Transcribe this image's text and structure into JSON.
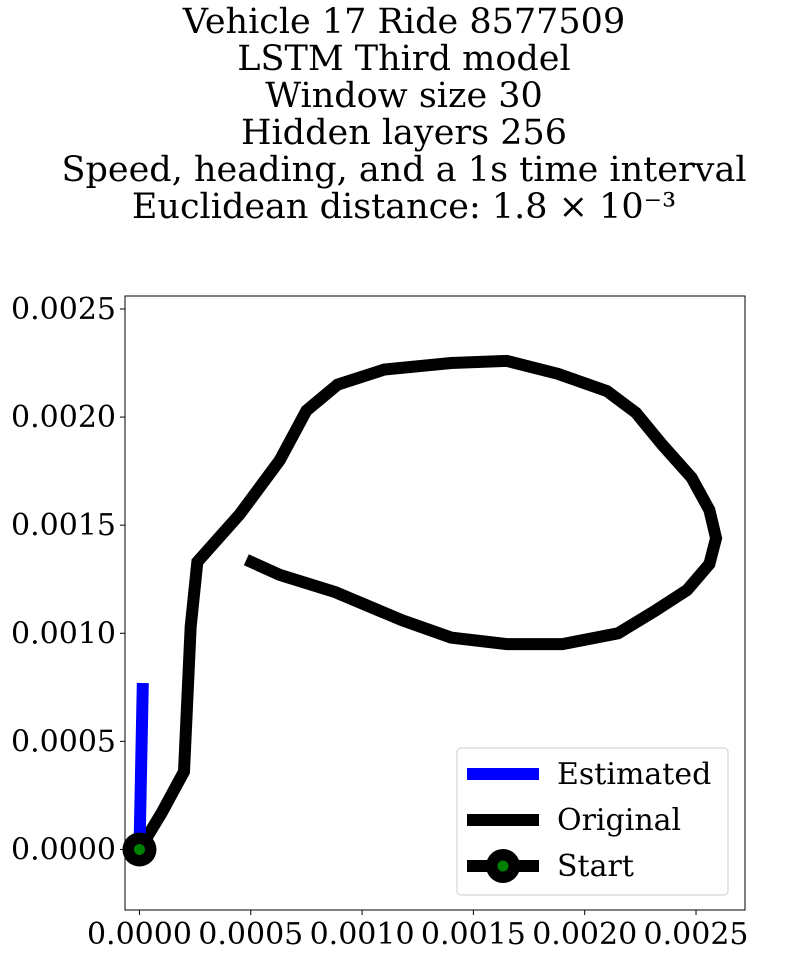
{
  "chart_data": {
    "type": "line",
    "title_lines": [
      "Vehicle 17 Ride 8577509",
      "LSTM Third model",
      "Window size 30",
      "Hidden layers 256",
      "Speed, heading, and a 1s time interval",
      "Euclidean distance: 1.8 × 10⁻³"
    ],
    "xlim": [
      -6.5e-05,
      0.00272
    ],
    "ylim": [
      -0.00028,
      0.00256
    ],
    "xticks": [
      0.0,
      0.0005,
      0.001,
      0.0015,
      0.002,
      0.0025
    ],
    "xtick_labels": [
      "0.0000",
      "0.0005",
      "0.0010",
      "0.0015",
      "0.0020",
      "0.0025"
    ],
    "yticks": [
      0.0,
      0.0005,
      0.001,
      0.0015,
      0.002,
      0.0025
    ],
    "ytick_labels": [
      "0.0000",
      "0.0005",
      "0.0010",
      "0.0015",
      "0.0020",
      "0.0025"
    ],
    "grid": false,
    "legend_position": "lower right",
    "series": [
      {
        "name": "Estimated",
        "color": "#0000ff",
        "x": [
          0.0,
          1.5e-05
        ],
        "y": [
          0.0,
          0.00077
        ]
      },
      {
        "name": "Original",
        "color": "#000000",
        "x": [
          0.0,
          0.0001,
          0.0002,
          0.00023,
          0.00026,
          0.00045,
          0.00063,
          0.00075,
          0.00089,
          0.0011,
          0.0014,
          0.00165,
          0.00188,
          0.0021,
          0.00223,
          0.00235,
          0.00248,
          0.00256,
          0.00259,
          0.00256,
          0.00246,
          0.00231,
          0.00215,
          0.0019,
          0.00165,
          0.0014,
          0.00118,
          0.00088,
          0.00063,
          0.00048
        ],
        "y": [
          0.0,
          0.00017,
          0.00036,
          0.00103,
          0.00133,
          0.00155,
          0.0018,
          0.00203,
          0.00215,
          0.00222,
          0.00225,
          0.00226,
          0.0022,
          0.00212,
          0.00202,
          0.00187,
          0.00172,
          0.00157,
          0.00144,
          0.00132,
          0.0012,
          0.0011,
          0.001,
          0.00095,
          0.00095,
          0.00098,
          0.00106,
          0.00119,
          0.00127,
          0.00134
        ]
      },
      {
        "name": "Start",
        "color": "#000000",
        "marker_color": "#008000",
        "x": [
          0.0
        ],
        "y": [
          0.0
        ]
      }
    ]
  }
}
